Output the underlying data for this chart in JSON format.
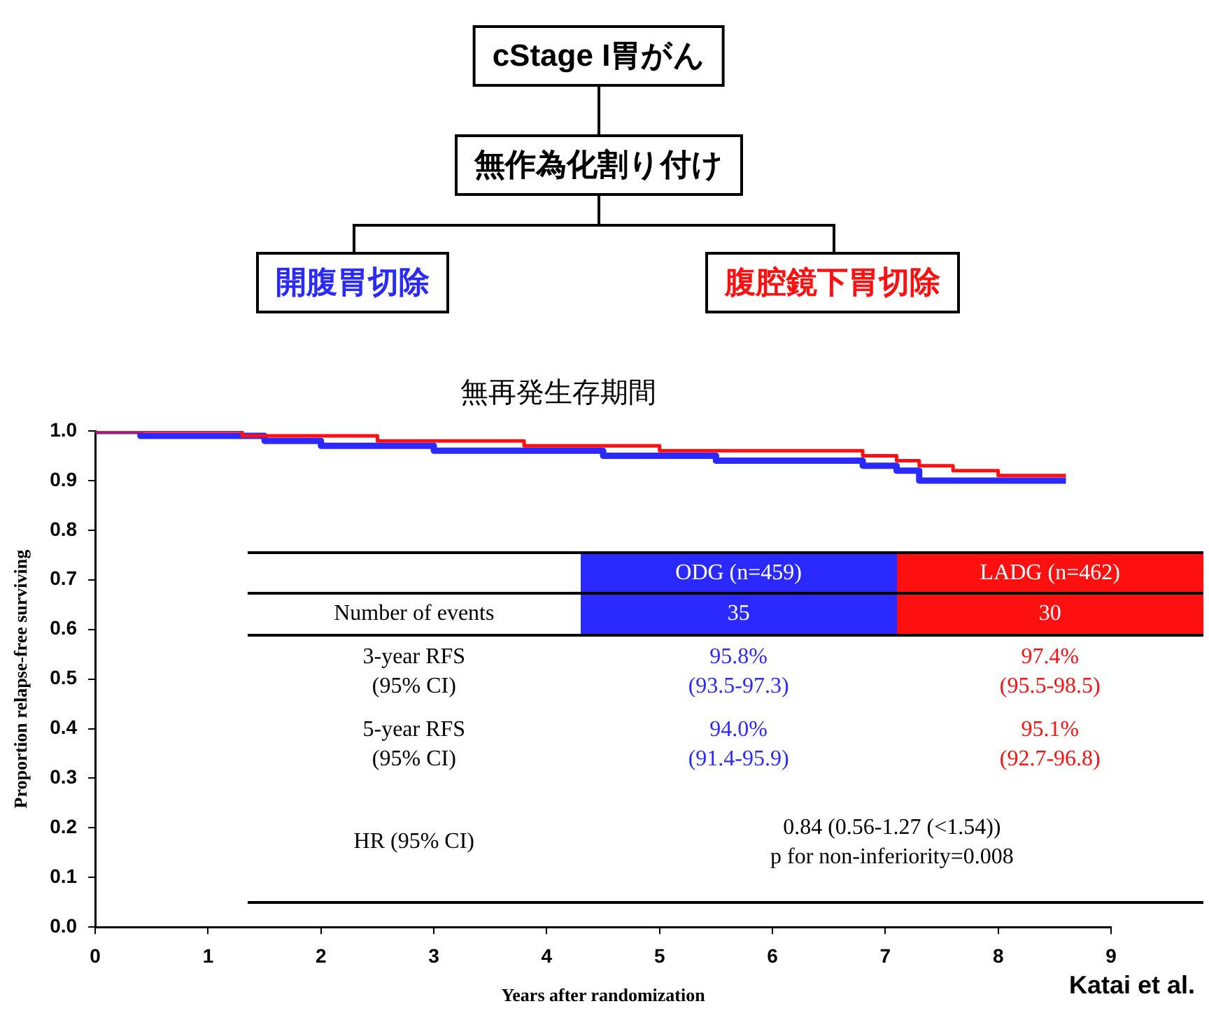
{
  "chart_data": {
    "type": "step",
    "title": "無再発生存期間",
    "xlabel": "Years after randomization",
    "ylabel": "Proportion relapse-free surviving",
    "xlim": [
      0,
      9
    ],
    "xticks": [
      0,
      1,
      2,
      3,
      4,
      5,
      6,
      7,
      8,
      9
    ],
    "ylim": [
      0,
      1
    ],
    "yticks": [
      {
        "value": 0,
        "label": "0.0"
      },
      {
        "value": 0.1,
        "label": "0.1"
      },
      {
        "value": 0.2,
        "label": "0.2"
      },
      {
        "value": 0.3,
        "label": "0.3"
      },
      {
        "value": 0.4,
        "label": "0.4"
      },
      {
        "value": 0.5,
        "label": "0.5"
      },
      {
        "value": 0.6,
        "label": "0.6"
      },
      {
        "value": 0.7,
        "label": "0.7"
      },
      {
        "value": 0.8,
        "label": "0.8"
      },
      {
        "value": 0.9,
        "label": "0.9"
      },
      {
        "value": 1,
        "label": "1.0"
      }
    ],
    "grid": false,
    "marker": "none",
    "line_style": "solid",
    "series": [
      {
        "name": "ODG (n=459)",
        "color": "#2a2aff",
        "x": [
          0,
          0.4,
          1.5,
          2,
          3,
          4.5,
          5.5,
          6.8,
          7.1,
          7.3,
          8.6
        ],
        "values": [
          1,
          0.99,
          0.98,
          0.97,
          0.96,
          0.95,
          0.94,
          0.93,
          0.92,
          0.9,
          0.9
        ]
      },
      {
        "name": "LADG (n=462)",
        "color": "#ff1010",
        "x": [
          0,
          1.3,
          2.5,
          3.8,
          5,
          6.8,
          7.1,
          7.3,
          7.6,
          8,
          8.6
        ],
        "values": [
          1,
          0.99,
          0.98,
          0.97,
          0.96,
          0.95,
          0.94,
          0.93,
          0.92,
          0.91,
          0.91
        ]
      }
    ],
    "annotations": [
      "cStage I胃がん",
      "無作為化割り付け",
      "開腹胃切除",
      "腹腔鏡下胃切除",
      "Number of events",
      "35",
      "30",
      "3-year RFS\n(95% CI)",
      "95.8%\n(93.5-97.3)",
      "97.4%\n(95.5-98.5)",
      "5-year RFS\n(95% CI)",
      "94.0%\n(91.4-95.9)",
      "95.1%\n(92.7-96.8)",
      "HR (95% CI)",
      "0.84 (0.56-1.27 (<1.54))\np for non-inferiority=0.008",
      "Katai et al."
    ]
  }
}
